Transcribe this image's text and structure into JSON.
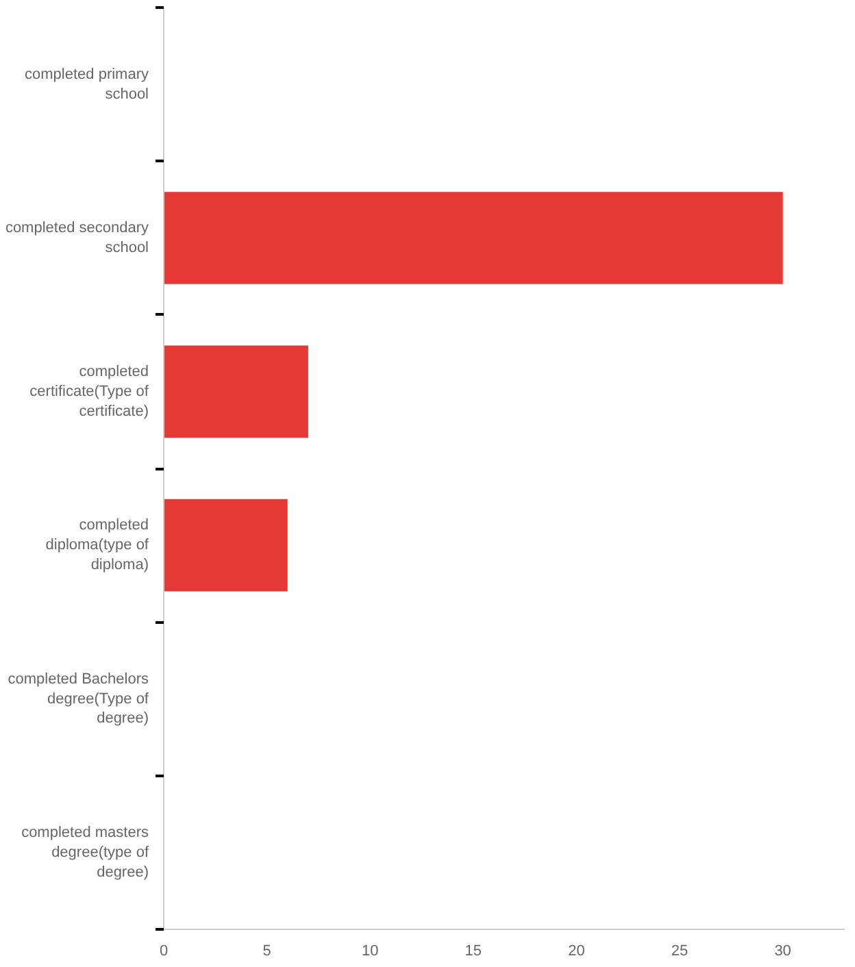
{
  "chart_data": {
    "type": "bar",
    "orientation": "horizontal",
    "categories": [
      "completed primary school",
      "completed secondary school",
      "completed certificate(Type of certificate)",
      "completed diploma(type of diploma)",
      "completed Bachelors degree(Type of degree)",
      "completed masters degree(type of degree)"
    ],
    "values": [
      0,
      30,
      7,
      6,
      0,
      0
    ],
    "color": "#e53935",
    "xlim": [
      0,
      33
    ],
    "xticks": [
      0,
      5,
      10,
      15,
      20,
      25,
      30
    ],
    "grid": false
  }
}
